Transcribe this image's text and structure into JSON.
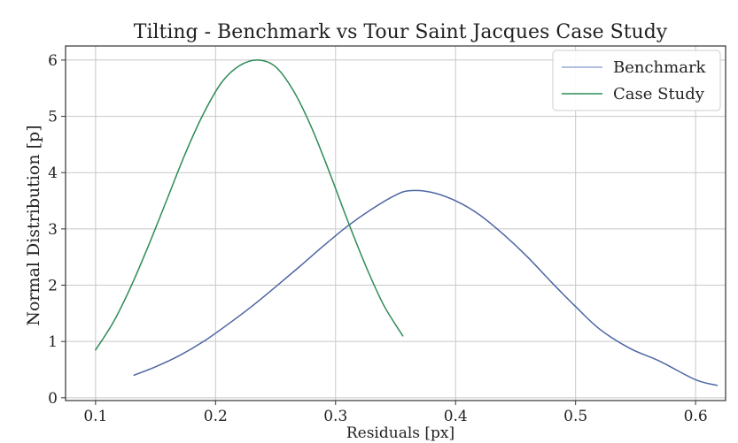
{
  "chart_data": {
    "type": "line",
    "title": "Tilting - Benchmark vs Tour Saint Jacques Case Study",
    "xlabel": "Residuals [px]",
    "ylabel": "Normal Distribution [p]",
    "xlim": [
      0.075,
      0.625
    ],
    "ylim": [
      -0.05,
      6.25
    ],
    "xticks": [
      0.1,
      0.2,
      0.3,
      0.4,
      0.5,
      0.6
    ],
    "yticks": [
      0,
      1,
      2,
      3,
      4,
      5,
      6
    ],
    "xtick_labels": [
      "0.1",
      "0.2",
      "0.3",
      "0.4",
      "0.5",
      "0.6"
    ],
    "ytick_labels": [
      "0",
      "1",
      "2",
      "3",
      "4",
      "5",
      "6"
    ],
    "grid": true,
    "legend_position": "top-right",
    "series": [
      {
        "name": "Benchmark",
        "color": "#4c66a3",
        "legend_color": "#9aa8d6",
        "x": [
          0.132,
          0.15,
          0.17,
          0.19,
          0.21,
          0.23,
          0.25,
          0.27,
          0.29,
          0.31,
          0.33,
          0.35,
          0.362,
          0.38,
          0.4,
          0.42,
          0.44,
          0.46,
          0.48,
          0.5,
          0.52,
          0.545,
          0.57,
          0.6,
          0.618
        ],
        "y": [
          0.4,
          0.55,
          0.75,
          1.0,
          1.3,
          1.62,
          1.97,
          2.33,
          2.7,
          3.05,
          3.35,
          3.6,
          3.68,
          3.65,
          3.5,
          3.25,
          2.9,
          2.5,
          2.05,
          1.62,
          1.22,
          0.88,
          0.65,
          0.32,
          0.22
        ]
      },
      {
        "name": "Case Study",
        "color": "#2e8b57",
        "legend_color": "#2e8b57",
        "x": [
          0.1,
          0.115,
          0.13,
          0.145,
          0.16,
          0.175,
          0.19,
          0.205,
          0.22,
          0.235,
          0.25,
          0.265,
          0.28,
          0.295,
          0.31,
          0.325,
          0.34,
          0.356
        ],
        "y": [
          0.85,
          1.35,
          2.0,
          2.75,
          3.55,
          4.35,
          5.05,
          5.6,
          5.9,
          6.0,
          5.88,
          5.45,
          4.8,
          4.0,
          3.15,
          2.35,
          1.65,
          1.1
        ]
      }
    ]
  }
}
